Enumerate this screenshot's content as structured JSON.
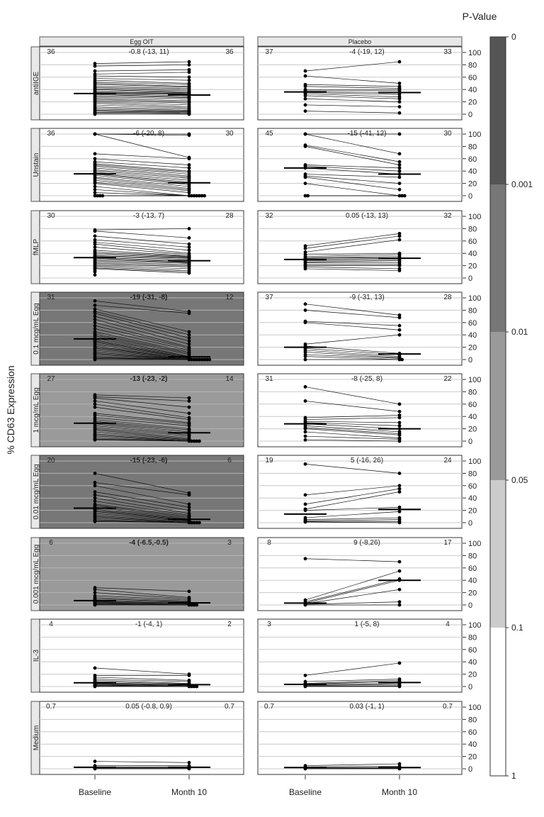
{
  "chart_data": {
    "type": "line",
    "ylabel": "% CD63 Expression",
    "colorbar_title": "P-Value",
    "colorbar_ticks": [
      "0",
      "0.001",
      "0.01",
      "0.05",
      "0.1",
      "1"
    ],
    "colorbar_levels": [
      {
        "range": [
          0,
          0.001
        ],
        "color": "#555555"
      },
      {
        "range": [
          0.001,
          0.01
        ],
        "color": "#777777"
      },
      {
        "range": [
          0.01,
          0.05
        ],
        "color": "#9a9a9a"
      },
      {
        "range": [
          0.05,
          0.1
        ],
        "color": "#cccccc"
      },
      {
        "range": [
          0.1,
          1
        ],
        "color": "#ffffff"
      }
    ],
    "columns": [
      "Egg OIT",
      "Placebo"
    ],
    "x_categories": [
      "Baseline",
      "Month 10"
    ],
    "y_ticks": [
      "0",
      "20",
      "40",
      "60",
      "80",
      "100"
    ],
    "ylim": [
      0,
      100
    ],
    "grid": true,
    "rows": [
      {
        "label": "antiIGE",
        "panels": [
          {
            "left": "36",
            "center": "-0.8 (-13, 11)",
            "right": "36",
            "bold": false,
            "bg": "#ffffff",
            "baseline": [
              82,
              78,
              70,
              65,
              62,
              58,
              55,
              52,
              50,
              48,
              45,
              43,
              41,
              40,
              38,
              36,
              35,
              34,
              33,
              32,
              30,
              28,
              26,
              24,
              22,
              20,
              18,
              15,
              12,
              10,
              8,
              6,
              5,
              3,
              2,
              0
            ],
            "month10": [
              85,
              80,
              72,
              68,
              60,
              55,
              50,
              48,
              45,
              44,
              42,
              40,
              38,
              36,
              35,
              34,
              33,
              32,
              30,
              28,
              27,
              25,
              22,
              20,
              18,
              15,
              12,
              10,
              8,
              6,
              5,
              4,
              3,
              2,
              1,
              0
            ]
          },
          {
            "left": "37",
            "center": "-4 (-19, 12)",
            "right": "33",
            "bold": false,
            "bg": "#ffffff",
            "baseline": [
              70,
              62,
              48,
              45,
              40,
              38,
              36,
              35,
              33,
              30,
              25,
              15,
              5
            ],
            "month10": [
              85,
              50,
              45,
              42,
              40,
              38,
              35,
              32,
              28,
              25,
              20,
              12,
              2
            ]
          }
        ]
      },
      {
        "label": "Unstain",
        "panels": [
          {
            "left": "36",
            "center": "-6 (-20, 8)",
            "right": "30",
            "bold": false,
            "bg": "#ffffff",
            "baseline": [
              100,
              100,
              100,
              68,
              60,
              55,
              52,
              50,
              48,
              45,
              42,
              40,
              38,
              36,
              35,
              33,
              30,
              28,
              25,
              22,
              20,
              15,
              10,
              5,
              0,
              0,
              0,
              0
            ],
            "month10": [
              100,
              98,
              62,
              60,
              50,
              45,
              40,
              38,
              35,
              32,
              30,
              28,
              25,
              22,
              20,
              18,
              15,
              12,
              10,
              8,
              5,
              0,
              0,
              0,
              0,
              0,
              0,
              0
            ]
          },
          {
            "left": "45",
            "center": "-15 (-41, 12)",
            "right": "30",
            "bold": false,
            "bg": "#ffffff",
            "baseline": [
              100,
              100,
              82,
              80,
              50,
              48,
              45,
              35,
              32,
              30,
              20,
              0,
              0
            ],
            "month10": [
              100,
              68,
              55,
              50,
              45,
              40,
              35,
              30,
              20,
              10,
              0,
              0,
              0
            ]
          }
        ]
      },
      {
        "label": "fMLP",
        "panels": [
          {
            "left": "30",
            "center": "-3 (-13, 7)",
            "right": "28",
            "bold": false,
            "bg": "#ffffff",
            "baseline": [
              78,
              76,
              68,
              62,
              58,
              55,
              50,
              45,
              42,
              40,
              38,
              36,
              35,
              33,
              32,
              30,
              28,
              26,
              24,
              22,
              20,
              18,
              16,
              15,
              12,
              10,
              5
            ],
            "month10": [
              80,
              65,
              55,
              50,
              45,
              40,
              38,
              36,
              35,
              34,
              33,
              32,
              30,
              28,
              26,
              25,
              24,
              22,
              20,
              18,
              15,
              12,
              10,
              8
            ],
            "month10_median": 28
          },
          {
            "left": "32",
            "center": "0.05 (-13, 13)",
            "right": "32",
            "bold": false,
            "bg": "#ffffff",
            "baseline": [
              52,
              48,
              42,
              38,
              35,
              33,
              32,
              30,
              28,
              26,
              25,
              22,
              20,
              18,
              15
            ],
            "month10": [
              72,
              68,
              62,
              40,
              38,
              35,
              33,
              32,
              30,
              28,
              25,
              22,
              20,
              15,
              12
            ]
          }
        ]
      },
      {
        "label": "0.1  mcg/mL Egg",
        "panels": [
          {
            "left": "31",
            "center": "-19 (-31, -8)",
            "right": "12",
            "bold": true,
            "bg": "#777777",
            "baseline": [
              95,
              88,
              82,
              78,
              75,
              70,
              65,
              60,
              55,
              50,
              45,
              42,
              40,
              38,
              35,
              32,
              30,
              28,
              25,
              22,
              20,
              18,
              15,
              12,
              10,
              8,
              5,
              3,
              2,
              0
            ],
            "month10": [
              78,
              75,
              45,
              40,
              35,
              30,
              25,
              20,
              18,
              15,
              12,
              10,
              8,
              5,
              5,
              4,
              3,
              2,
              2,
              1,
              1,
              0,
              0,
              0,
              0,
              0,
              0,
              0,
              0,
              0
            ]
          },
          {
            "left": "37",
            "center": "-9 (-31, 13)",
            "right": "28",
            "bold": false,
            "bg": "#ffffff",
            "baseline": [
              90,
              80,
              62,
              60,
              25,
              22,
              18,
              15,
              12,
              8,
              5,
              0
            ],
            "month10": [
              72,
              68,
              55,
              48,
              40,
              10,
              8,
              5,
              3,
              2,
              0,
              0
            ]
          }
        ]
      },
      {
        "label": "1 mcg/mL Egg",
        "panels": [
          {
            "left": "27",
            "center": "-13 (-23, -2)",
            "right": "14",
            "bold": true,
            "bg": "#9a9a9a",
            "baseline": [
              75,
              72,
              70,
              65,
              60,
              55,
              45,
              42,
              38,
              35,
              32,
              30,
              28,
              25,
              22,
              20,
              18,
              15,
              12,
              10,
              8,
              5,
              3,
              2
            ],
            "month10": [
              70,
              65,
              55,
              45,
              38,
              35,
              30,
              28,
              25,
              20,
              18,
              15,
              12,
              10,
              8,
              5,
              3,
              2,
              1,
              0,
              0,
              0,
              0,
              0
            ]
          },
          {
            "left": "31",
            "center": "-8 (-25, 8)",
            "right": "22",
            "bold": false,
            "bg": "#ffffff",
            "baseline": [
              88,
              65,
              38,
              35,
              32,
              30,
              28,
              25,
              22,
              20,
              15,
              8,
              2
            ],
            "month10": [
              60,
              48,
              42,
              38,
              30,
              25,
              20,
              15,
              12,
              10,
              5,
              3,
              0
            ]
          }
        ]
      },
      {
        "label": "0.01  mcg/mL Egg",
        "panels": [
          {
            "left": "20",
            "center": "-15 (-23, -6)",
            "right": "6",
            "bold": true,
            "bg": "#777777",
            "baseline": [
              80,
              65,
              60,
              50,
              45,
              40,
              35,
              30,
              28,
              25,
              22,
              20,
              18,
              15,
              12,
              10,
              8,
              5,
              3,
              2
            ],
            "month10": [
              48,
              45,
              30,
              25,
              20,
              15,
              12,
              10,
              8,
              6,
              5,
              4,
              3,
              2,
              1,
              0,
              0,
              0,
              0,
              0
            ]
          },
          {
            "left": "19",
            "center": "5 (-16, 26)",
            "right": "24",
            "bold": false,
            "bg": "#ffffff",
            "baseline": [
              95,
              45,
              30,
              22,
              20,
              8,
              5,
              3,
              2,
              1
            ],
            "month10": [
              80,
              60,
              55,
              50,
              25,
              18,
              8,
              5,
              2,
              0
            ]
          }
        ]
      },
      {
        "label": "0.001  mcg/mL Egg",
        "panels": [
          {
            "left": "6",
            "center": "-4 (-6.5,-0.5)",
            "right": "3",
            "bold": true,
            "bg": "#9a9a9a",
            "baseline": [
              28,
              25,
              20,
              15,
              12,
              10,
              8,
              6,
              5,
              4,
              3,
              2,
              1,
              0
            ],
            "month10": [
              22,
              12,
              10,
              8,
              6,
              5,
              4,
              3,
              2,
              1,
              0,
              0,
              0,
              0
            ]
          },
          {
            "left": "8",
            "center": "9 (-8,26)",
            "right": "17",
            "bold": false,
            "bg": "#ffffff",
            "baseline": [
              75,
              8,
              5,
              3,
              2,
              1,
              0
            ],
            "month10": [
              70,
              55,
              42,
              40,
              25,
              5,
              0
            ]
          }
        ]
      },
      {
        "label": "IL-3",
        "panels": [
          {
            "left": "4",
            "center": "-1 (-4, 1)",
            "right": "2",
            "bold": false,
            "bg": "#ffffff",
            "baseline": [
              30,
              18,
              15,
              12,
              10,
              8,
              6,
              5,
              4,
              3,
              2,
              1,
              0
            ],
            "month10": [
              20,
              18,
              10,
              8,
              5,
              4,
              3,
              2,
              1,
              0,
              0,
              0,
              0
            ]
          },
          {
            "left": "3",
            "center": "1 (-5, 8)",
            "right": "4",
            "bold": false,
            "bg": "#ffffff",
            "baseline": [
              18,
              8,
              5,
              4,
              3,
              2,
              1,
              0
            ],
            "month10": [
              38,
              12,
              10,
              8,
              5,
              3,
              1,
              0
            ]
          }
        ]
      },
      {
        "label": "Medium",
        "panels": [
          {
            "left": "0.7",
            "center": "0.05 (-0.8, 0.9)",
            "right": "0.7",
            "bold": false,
            "bg": "#ffffff",
            "baseline": [
              12,
              5,
              3,
              2,
              1,
              0
            ],
            "month10": [
              10,
              5,
              3,
              2,
              1,
              0
            ]
          },
          {
            "left": "0.7",
            "center": "0.03 (-1, 1)",
            "right": "0.7",
            "bold": false,
            "bg": "#ffffff",
            "baseline": [
              5,
              3,
              2,
              1,
              0
            ],
            "month10": [
              8,
              4,
              2,
              1,
              0
            ]
          }
        ]
      }
    ]
  }
}
